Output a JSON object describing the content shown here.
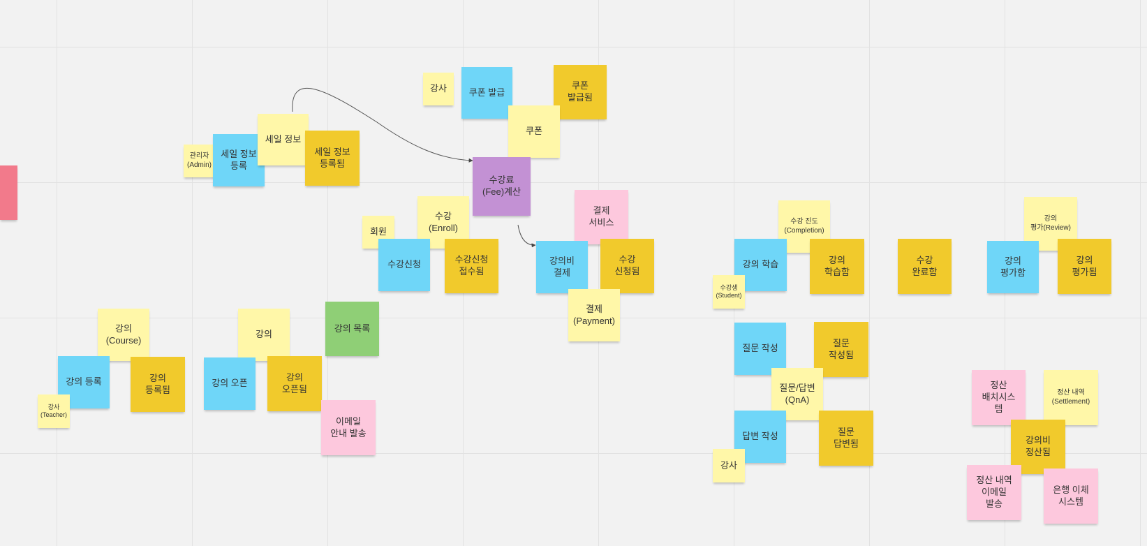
{
  "notes": {
    "coupon_actor": "강사",
    "coupon_issue": "쿠폰 발급",
    "coupon_issued": "쿠폰\n발급됨",
    "coupon": "쿠폰",
    "admin": "관리자\n(Admin)",
    "sale_register": "세일 정보\n등록",
    "sale_info": "세일 정보",
    "sale_registered": "세일 정보\n등록됨",
    "fee_calc": "수강료\n(Fee)계산",
    "member": "회원",
    "enroll": "수강\n(Enroll)",
    "enroll_request": "수강신청",
    "enroll_received": "수강신청\n접수됨",
    "payment_service": "결제\n서비스",
    "fee_payment": "강의비\n결제",
    "enrolled": "수강\n신청됨",
    "payment": "결제\n(Payment)",
    "completion": "수강 진도\n(Completion)",
    "study": "강의 학습",
    "studied": "강의\n학습함",
    "student": "수강생\n(Student)",
    "completed": "수강\n완료함",
    "review": "강의\n평가(Review)",
    "evaluate": "강의\n평가함",
    "evaluated": "강의\n평가됨",
    "course": "강의\n(Course)",
    "course_register": "강의 등록",
    "course_registered": "강의\n등록됨",
    "teacher": "강사\n(Teacher)",
    "lecture": "강의",
    "course_open": "강의 오픈",
    "course_opened": "강의\n오픈됨",
    "course_list": "강의 목록",
    "email_notice": "이메일\n안내 발송",
    "question_write": "질문 작성",
    "question_written": "질문\n작성됨",
    "qna": "질문/답변\n(QnA)",
    "answer_write": "답변 작성",
    "answer_done": "질문\n답변됨",
    "qna_actor": "강사",
    "batch_system": "정산\n배치시스\n템",
    "settlement": "정산 내역\n(Settlement)",
    "settled": "강의비\n정산됨",
    "settle_email": "정산 내역\n이메일\n발송",
    "bank_system": "은행 이체\n시스템"
  },
  "colors": {
    "command": "#6fd6f8",
    "event": "#f1ca2c",
    "aggregate_or_actor": "#fff7a8",
    "policy": "#c391d4",
    "external_system": "#fdc8dd",
    "read_model": "#8fcf76",
    "hotspot": "#f27a8b"
  }
}
